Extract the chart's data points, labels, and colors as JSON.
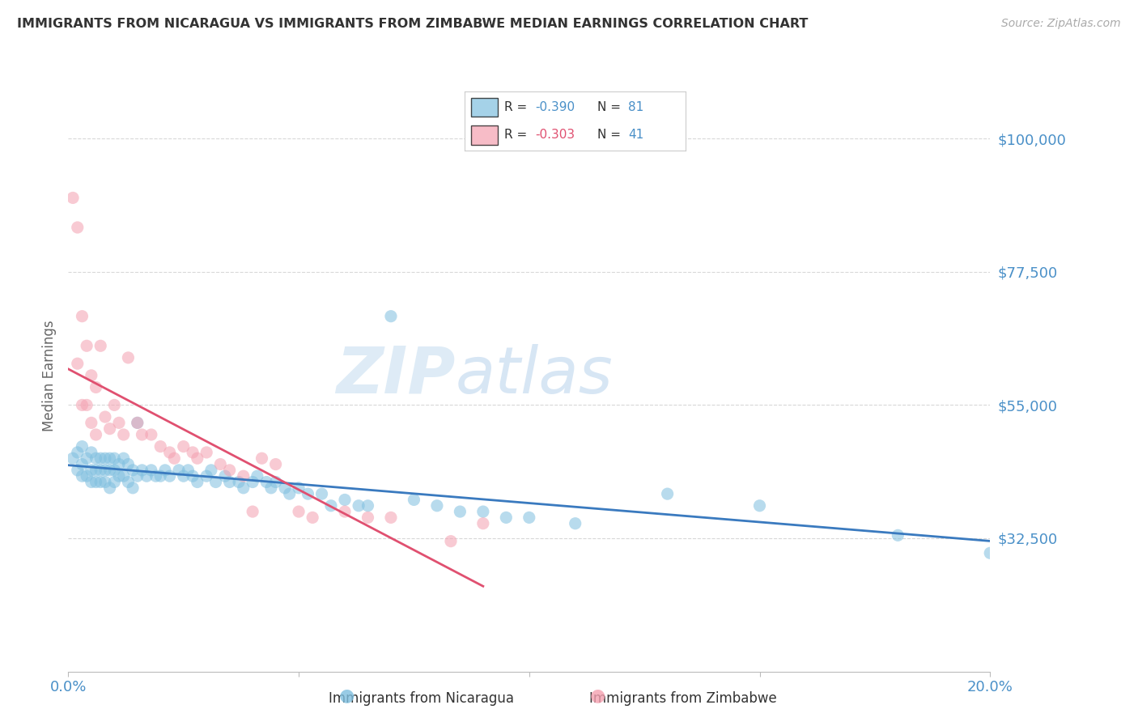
{
  "title": "IMMIGRANTS FROM NICARAGUA VS IMMIGRANTS FROM ZIMBABWE MEDIAN EARNINGS CORRELATION CHART",
  "source_text": "Source: ZipAtlas.com",
  "ylabel": "Median Earnings",
  "xlim": [
    0.0,
    0.2
  ],
  "ylim": [
    10000,
    110000
  ],
  "yticks": [
    32500,
    55000,
    77500,
    100000
  ],
  "ytick_labels": [
    "$32,500",
    "$55,000",
    "$77,500",
    "$100,000"
  ],
  "xticks": [
    0.0,
    0.05,
    0.1,
    0.15,
    0.2
  ],
  "xtick_labels": [
    "0.0%",
    "",
    "",
    "",
    "20.0%"
  ],
  "watermark_zip": "ZIP",
  "watermark_atlas": "atlas",
  "blue_color": "#7fbfdf",
  "pink_color": "#f4a0b0",
  "line_blue": "#3a7abf",
  "line_pink": "#e05070",
  "tick_label_color": "#4a90c8",
  "grid_color": "#d8d8d8",
  "legend_blue_r": "-0.390",
  "legend_blue_n": "81",
  "legend_pink_r": "-0.303",
  "legend_pink_n": "41",
  "nicaragua_x": [
    0.001,
    0.002,
    0.002,
    0.003,
    0.003,
    0.003,
    0.004,
    0.004,
    0.005,
    0.005,
    0.005,
    0.006,
    0.006,
    0.006,
    0.007,
    0.007,
    0.007,
    0.008,
    0.008,
    0.008,
    0.009,
    0.009,
    0.009,
    0.01,
    0.01,
    0.01,
    0.011,
    0.011,
    0.012,
    0.012,
    0.013,
    0.013,
    0.014,
    0.014,
    0.015,
    0.015,
    0.016,
    0.017,
    0.018,
    0.019,
    0.02,
    0.021,
    0.022,
    0.024,
    0.025,
    0.026,
    0.027,
    0.028,
    0.03,
    0.031,
    0.032,
    0.034,
    0.035,
    0.037,
    0.038,
    0.04,
    0.041,
    0.043,
    0.044,
    0.045,
    0.047,
    0.048,
    0.05,
    0.052,
    0.055,
    0.057,
    0.06,
    0.063,
    0.065,
    0.07,
    0.075,
    0.08,
    0.085,
    0.09,
    0.095,
    0.1,
    0.11,
    0.13,
    0.15,
    0.18,
    0.2
  ],
  "nicaragua_y": [
    46000,
    47000,
    44000,
    48000,
    45000,
    43000,
    46000,
    43000,
    47000,
    44000,
    42000,
    46000,
    44000,
    42000,
    46000,
    44000,
    42000,
    46000,
    44000,
    42000,
    46000,
    44000,
    41000,
    46000,
    44000,
    42000,
    45000,
    43000,
    46000,
    43000,
    45000,
    42000,
    44000,
    41000,
    52000,
    43000,
    44000,
    43000,
    44000,
    43000,
    43000,
    44000,
    43000,
    44000,
    43000,
    44000,
    43000,
    42000,
    43000,
    44000,
    42000,
    43000,
    42000,
    42000,
    41000,
    42000,
    43000,
    42000,
    41000,
    42000,
    41000,
    40000,
    41000,
    40000,
    40000,
    38000,
    39000,
    38000,
    38000,
    70000,
    39000,
    38000,
    37000,
    37000,
    36000,
    36000,
    35000,
    40000,
    38000,
    33000,
    30000
  ],
  "zimbabwe_x": [
    0.001,
    0.002,
    0.002,
    0.003,
    0.003,
    0.004,
    0.004,
    0.005,
    0.005,
    0.006,
    0.006,
    0.007,
    0.008,
    0.009,
    0.01,
    0.011,
    0.012,
    0.013,
    0.015,
    0.016,
    0.018,
    0.02,
    0.022,
    0.023,
    0.025,
    0.027,
    0.028,
    0.03,
    0.033,
    0.035,
    0.038,
    0.04,
    0.042,
    0.045,
    0.05,
    0.053,
    0.06,
    0.065,
    0.07,
    0.083,
    0.09
  ],
  "zimbabwe_y": [
    90000,
    85000,
    62000,
    70000,
    55000,
    65000,
    55000,
    60000,
    52000,
    58000,
    50000,
    65000,
    53000,
    51000,
    55000,
    52000,
    50000,
    63000,
    52000,
    50000,
    50000,
    48000,
    47000,
    46000,
    48000,
    47000,
    46000,
    47000,
    45000,
    44000,
    43000,
    37000,
    46000,
    45000,
    37000,
    36000,
    37000,
    36000,
    36000,
    32000,
    35000
  ]
}
